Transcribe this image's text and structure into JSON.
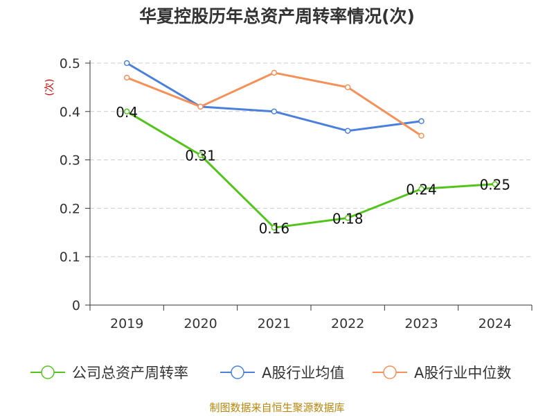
{
  "chart_data": {
    "type": "line",
    "title": "华夏控股历年总资产周转率情况(次)",
    "ylabel": "(次)",
    "xlabel": "",
    "categories": [
      "2019",
      "2020",
      "2021",
      "2022",
      "2023",
      "2024"
    ],
    "ylim": [
      0,
      0.5
    ],
    "yticks": [
      "0",
      "0.1",
      "0.2",
      "0.3",
      "0.4",
      "0.5"
    ],
    "grid": true,
    "legend_position": "bottom",
    "series": [
      {
        "name": "公司总资产周转率",
        "color": "#52c41a",
        "values": [
          0.4,
          0.31,
          0.16,
          0.18,
          0.24,
          0.25
        ],
        "labels": [
          "0.4",
          "0.31",
          "0.16",
          "0.18",
          "0.24",
          "0.25"
        ]
      },
      {
        "name": "A股行业均值",
        "color": "#4a7fdc",
        "values": [
          0.5,
          0.41,
          0.4,
          0.36,
          0.38,
          null
        ]
      },
      {
        "name": "A股行业中位数",
        "color": "#f59058",
        "values": [
          0.47,
          0.41,
          0.48,
          0.45,
          0.35,
          null
        ]
      }
    ]
  },
  "source": "制图数据来自恒生聚源数据库",
  "colors": {
    "grid": "#cccccc",
    "axis": "#333333",
    "ylabel": "#cc0000"
  }
}
